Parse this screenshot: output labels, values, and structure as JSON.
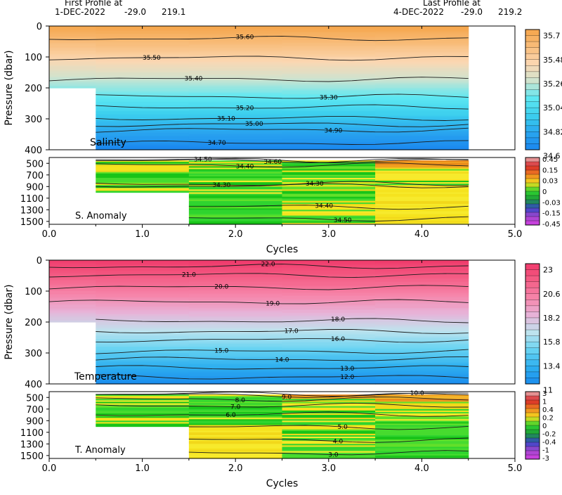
{
  "header": {
    "first_label": "First Profile at",
    "first_date": "1-DEC-2022",
    "first_lat": "-29.0",
    "first_lon": "219.1",
    "last_label": "Last Profile at",
    "last_date": "4-DEC-2022",
    "last_lat": "-29.0",
    "last_lon": "219.2"
  },
  "chart_data": [
    {
      "type": "heatmap",
      "panel": "salinity",
      "label": "Salinity",
      "ylabel": "Pressure (dbar)",
      "xlabel": "Cycles",
      "xlim": [
        0.0,
        5.0
      ],
      "x_ticks": [
        "0.0",
        "1.0",
        "2.0",
        "3.0",
        "4.0",
        "5.0"
      ],
      "upper_ylim": [
        0,
        400
      ],
      "upper_y_ticks": [
        "0",
        "100",
        "200",
        "300",
        "400"
      ],
      "lower_ylim": [
        400,
        1550
      ],
      "lower_y_ticks": [
        "500",
        "700",
        "900",
        "1100",
        "1300",
        "1500"
      ],
      "colorbar_ticks": [
        "35.7",
        "35.48",
        "35.26",
        "35.04",
        "34.82",
        "34.6"
      ],
      "colorbar_colors": [
        "#f5a54a",
        "#f8bd7b",
        "#fbd7b2",
        "#cfe3cf",
        "#5fe8f2",
        "#3ccfee",
        "#2aa6ef",
        "#1a86ef"
      ],
      "anomaly_label": "S. Anomaly",
      "anomaly_ticks": [
        "0.45",
        "0.15",
        "0.03",
        "0",
        "-0.03",
        "-0.15",
        "-0.45"
      ],
      "anomaly_colors": [
        "#e9b4b4",
        "#d7262a",
        "#f08020",
        "#f5dc1f",
        "#2fd42f",
        "#1c9c3a",
        "#3547c8",
        "#a347cf",
        "#d23fe0"
      ],
      "contours_upper": [
        {
          "level": "35.60",
          "pressure": 40,
          "label_x": 2.1
        },
        {
          "level": "35.50",
          "pressure": 103,
          "label_x": 1.1
        },
        {
          "level": "35.40",
          "pressure": 172,
          "label_x": 1.55
        },
        {
          "level": "35.30",
          "pressure": 228,
          "label_x": 3.0
        },
        {
          "level": "35.20",
          "pressure": 262,
          "label_x": 2.1
        },
        {
          "level": "35.10",
          "pressure": 298,
          "label_x": 1.9
        },
        {
          "level": "35.00",
          "pressure": 318,
          "label_x": 2.2
        },
        {
          "level": "34.90",
          "pressure": 336,
          "label_x": 3.05
        },
        {
          "level": "34.70",
          "pressure": 378,
          "label_x": 1.8
        }
      ],
      "contours_lower": [
        {
          "level": "34.50",
          "pressure": 450,
          "label_x": 1.65
        },
        {
          "level": "34.60",
          "pressure": 450,
          "label_x": 2.4
        },
        {
          "level": "34.40",
          "pressure": 530,
          "label_x": 2.1
        },
        {
          "level": "34.30",
          "pressure": 855,
          "label_x": 1.85
        },
        {
          "level": "34.30",
          "pressure": 885,
          "label_x": 2.85
        },
        {
          "level": "34.40",
          "pressure": 1250,
          "label_x": 2.95
        },
        {
          "level": "34.50",
          "pressure": 1455,
          "label_x": 3.15
        }
      ]
    },
    {
      "type": "heatmap",
      "panel": "temperature",
      "label": "Temperature",
      "ylabel": "Pressure (dbar)",
      "xlabel": "Cycles",
      "xlim": [
        0.0,
        5.0
      ],
      "x_ticks": [
        "0.0",
        "1.0",
        "2.0",
        "3.0",
        "4.0",
        "5.0"
      ],
      "upper_ylim": [
        0,
        400
      ],
      "upper_y_ticks": [
        "0",
        "100",
        "200",
        "300",
        "400"
      ],
      "lower_ylim": [
        400,
        1550
      ],
      "lower_y_ticks": [
        "500",
        "700",
        "900",
        "1100",
        "1300",
        "1500"
      ],
      "colorbar_ticks": [
        "23",
        "20.6",
        "18.2",
        "15.8",
        "13.4",
        "11"
      ],
      "colorbar_colors": [
        "#f03a6b",
        "#f45e86",
        "#f685aa",
        "#e7b3d8",
        "#bfe3ee",
        "#69d4f2",
        "#2fb0ef",
        "#1a8cee"
      ],
      "anomaly_label": "T. Anomaly",
      "anomaly_ticks": [
        "3",
        "1",
        "0.4",
        "0.2",
        "0",
        "-0.2",
        "-0.4",
        "-1",
        "-3"
      ],
      "anomaly_colors": [
        "#e9b4b4",
        "#d7262a",
        "#f08020",
        "#f5dc1f",
        "#2fd42f",
        "#1c9c3a",
        "#3547c8",
        "#a347cf",
        "#d23fe0"
      ],
      "contours_upper": [
        {
          "level": "22.0",
          "pressure": 20,
          "label_x": 2.35
        },
        {
          "level": "21.0",
          "pressure": 48,
          "label_x": 1.5
        },
        {
          "level": "20.0",
          "pressure": 88,
          "label_x": 1.85
        },
        {
          "level": "19.0",
          "pressure": 135,
          "label_x": 2.4
        },
        {
          "level": "18.0",
          "pressure": 196,
          "label_x": 3.1
        },
        {
          "level": "17.0",
          "pressure": 230,
          "label_x": 2.6
        },
        {
          "level": "16.0",
          "pressure": 258,
          "label_x": 3.1
        },
        {
          "level": "15.0",
          "pressure": 295,
          "label_x": 1.85
        },
        {
          "level": "14.0",
          "pressure": 320,
          "label_x": 2.5
        },
        {
          "level": "13.0",
          "pressure": 348,
          "label_x": 3.2
        },
        {
          "level": "12.0",
          "pressure": 378,
          "label_x": 3.2
        }
      ],
      "contours_lower": [
        {
          "level": "10.0",
          "pressure": 440,
          "label_x": 3.95
        },
        {
          "level": "9.0",
          "pressure": 460,
          "label_x": 2.55
        },
        {
          "level": "8.0",
          "pressure": 530,
          "label_x": 2.05
        },
        {
          "level": "7.0",
          "pressure": 640,
          "label_x": 2.0
        },
        {
          "level": "6.0",
          "pressure": 790,
          "label_x": 1.95
        },
        {
          "level": "5.0",
          "pressure": 1010,
          "label_x": 3.15
        },
        {
          "level": "4.0",
          "pressure": 1235,
          "label_x": 3.1
        },
        {
          "level": "3.0",
          "pressure": 1455,
          "label_x": 3.05
        }
      ]
    }
  ]
}
